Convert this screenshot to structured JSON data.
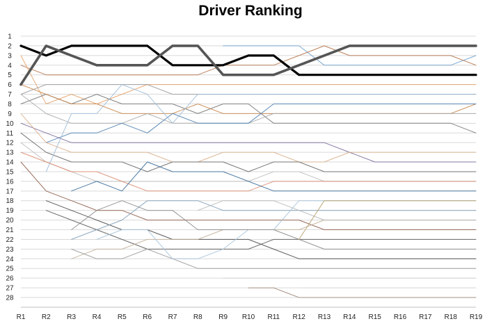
{
  "chart_data": {
    "type": "line",
    "title": "Driver Ranking",
    "xlabel": "",
    "ylabel": "",
    "categories": [
      "R1",
      "R2",
      "R3",
      "R4",
      "R5",
      "R6",
      "R7",
      "R8",
      "R9",
      "R10",
      "R11",
      "R12",
      "R13",
      "R14",
      "R15",
      "R16",
      "R17",
      "R18",
      "R19"
    ],
    "y_ticks": [
      "1",
      "2",
      "3",
      "4",
      "5",
      "6",
      "7",
      "8",
      "9",
      "10",
      "11",
      "12",
      "13",
      "14",
      "15",
      "16",
      "17",
      "18",
      "19",
      "20",
      "21",
      "22",
      "23",
      "24",
      "25",
      "26",
      "27",
      "28"
    ],
    "ylim": [
      1,
      28
    ],
    "y_inverted": true,
    "grid": "horizontal",
    "legend": "none",
    "series": [
      {
        "color": "#000000",
        "emphasis": "thick",
        "values": [
          2,
          3,
          2,
          2,
          2,
          2,
          4,
          4,
          4,
          3,
          3,
          5,
          5,
          5,
          5,
          5,
          5,
          5,
          5
        ]
      },
      {
        "color": "#555555",
        "emphasis": "thick",
        "values": [
          6,
          2,
          3,
          4,
          4,
          4,
          2,
          2,
          5,
          5,
          5,
          4,
          3,
          2,
          2,
          2,
          2,
          2,
          2
        ]
      },
      {
        "color": "#6fa0cc",
        "values": [
          null,
          null,
          null,
          null,
          null,
          null,
          null,
          null,
          2,
          2,
          2,
          2,
          4,
          4,
          4,
          4,
          4,
          4,
          3
        ]
      },
      {
        "color": "#b5734a",
        "values": [
          4,
          5,
          5,
          5,
          5,
          5,
          5,
          5,
          4,
          4,
          4,
          3,
          2,
          3,
          3,
          3,
          3,
          3,
          4
        ]
      },
      {
        "color": "#e6a36a",
        "values": [
          3,
          8,
          7,
          8,
          7,
          6,
          6,
          6,
          6,
          6,
          6,
          6,
          6,
          6,
          6,
          6,
          6,
          6,
          6
        ]
      },
      {
        "color": "#9a9a9a",
        "values": [
          7,
          6,
          6,
          6,
          6,
          6,
          7,
          7,
          7,
          7,
          7,
          7,
          7,
          7,
          7,
          7,
          7,
          7,
          7
        ]
      },
      {
        "color": "#777777",
        "values": [
          8,
          7,
          8,
          7,
          8,
          8,
          8,
          9,
          8,
          8,
          10,
          10,
          10,
          10,
          10,
          10,
          10,
          10,
          11
        ]
      },
      {
        "color": "#c98a50",
        "values": [
          6,
          7,
          8,
          8,
          9,
          9,
          9,
          8,
          9,
          9,
          9,
          9,
          9,
          9,
          9,
          9,
          9,
          9,
          8
        ]
      },
      {
        "color": "#a8a8a8",
        "values": [
          7,
          9,
          10,
          10,
          10,
          9,
          10,
          10,
          10,
          10,
          9,
          9,
          9,
          9,
          9,
          9,
          9,
          9,
          9
        ]
      },
      {
        "color": "#4d7fb0",
        "values": [
          null,
          12,
          11,
          11,
          10,
          11,
          9,
          10,
          10,
          10,
          8,
          8,
          8,
          8,
          8,
          8,
          8,
          8,
          8
        ]
      },
      {
        "color": "#7a6a9a",
        "values": [
          10,
          11,
          12,
          12,
          12,
          12,
          12,
          12,
          12,
          12,
          12,
          12,
          12,
          13,
          14,
          14,
          14,
          14,
          14
        ]
      },
      {
        "color": "#d9b08c",
        "values": [
          9,
          12,
          13,
          13,
          13,
          13,
          14,
          14,
          13,
          13,
          13,
          14,
          14,
          13,
          13,
          13,
          13,
          13,
          13
        ]
      },
      {
        "color": "#6a6a6a",
        "values": [
          11,
          13,
          14,
          14,
          14,
          15,
          14,
          14,
          14,
          15,
          14,
          14,
          15,
          15,
          15,
          15,
          15,
          15,
          15
        ]
      },
      {
        "color": "#9fbcd8",
        "values": [
          null,
          15,
          9,
          9,
          6,
          7,
          10,
          7,
          7,
          7,
          7,
          7,
          7,
          7,
          7,
          7,
          7,
          7,
          7
        ]
      },
      {
        "color": "#bfbfbf",
        "values": [
          12,
          14,
          15,
          16,
          16,
          16,
          16,
          16,
          16,
          16,
          15,
          15,
          16,
          16,
          16,
          16,
          16,
          16,
          16
        ]
      },
      {
        "color": "#d88c70",
        "values": [
          13,
          14,
          15,
          15,
          16,
          17,
          17,
          17,
          17,
          17,
          16,
          16,
          16,
          16,
          16,
          16,
          16,
          16,
          16
        ]
      },
      {
        "color": "#3a6d9a",
        "values": [
          null,
          null,
          17,
          16,
          17,
          14,
          15,
          15,
          15,
          16,
          17,
          17,
          17,
          17,
          17,
          17,
          17,
          17,
          17
        ]
      },
      {
        "color": "#8e5d4a",
        "values": [
          14,
          17,
          18,
          19,
          19,
          20,
          20,
          20,
          20,
          20,
          20,
          20,
          21,
          21,
          21,
          21,
          21,
          21,
          21
        ]
      },
      {
        "color": "#4a4a4a",
        "values": [
          null,
          18,
          19,
          20,
          21,
          21,
          22,
          22,
          22,
          22,
          23,
          24,
          24,
          24,
          24,
          24,
          24,
          24,
          24
        ]
      },
      {
        "color": "#5a5a5a",
        "values": [
          null,
          19,
          20,
          21,
          22,
          23,
          23,
          23,
          23,
          23,
          22,
          22,
          22,
          22,
          22,
          22,
          22,
          22,
          22
        ]
      },
      {
        "color": "#7f9fb8",
        "values": [
          null,
          null,
          22,
          21,
          20,
          18,
          18,
          18,
          19,
          19,
          19,
          19,
          19,
          19,
          19,
          19,
          19,
          19,
          19
        ]
      },
      {
        "color": "#c2b09a",
        "values": [
          null,
          null,
          24,
          23,
          23,
          22,
          22,
          22,
          21,
          21,
          21,
          21,
          20,
          20,
          20,
          20,
          20,
          20,
          20
        ]
      },
      {
        "color": "#9a9a9a",
        "values": [
          null,
          null,
          23,
          24,
          24,
          23,
          24,
          25,
          25,
          25,
          25,
          25,
          25,
          25,
          25,
          25,
          25,
          25,
          25
        ]
      },
      {
        "color": "#a7c4dc",
        "values": [
          null,
          null,
          null,
          22,
          21,
          21,
          24,
          24,
          23,
          21,
          21,
          18,
          18,
          18,
          18,
          18,
          18,
          18,
          18
        ]
      },
      {
        "color": "#8a8a8a",
        "values": [
          null,
          null,
          21,
          19,
          18,
          19,
          19,
          21,
          21,
          21,
          21,
          22,
          23,
          23,
          23,
          23,
          23,
          23,
          23
        ]
      },
      {
        "color": "#b7b7b7",
        "values": [
          null,
          null,
          null,
          null,
          null,
          null,
          null,
          19,
          18,
          18,
          18,
          19,
          20,
          20,
          20,
          20,
          20,
          20,
          20
        ]
      },
      {
        "color": "#cfcfcf",
        "values": [
          null,
          null,
          null,
          null,
          null,
          null,
          null,
          null,
          26,
          26,
          26,
          26,
          26,
          26,
          26,
          26,
          26,
          26,
          26
        ]
      },
      {
        "color": "#a08a7a",
        "values": [
          null,
          null,
          null,
          null,
          null,
          null,
          null,
          null,
          null,
          27,
          27,
          28,
          28,
          28,
          28,
          28,
          28,
          28,
          28
        ]
      },
      {
        "color": "#dcdcdc",
        "values": [
          null,
          null,
          null,
          null,
          null,
          null,
          null,
          null,
          null,
          null,
          null,
          27,
          27,
          27,
          27,
          27,
          27,
          27,
          27
        ]
      },
      {
        "color": "#b8a06e",
        "values": [
          null,
          null,
          null,
          null,
          null,
          null,
          null,
          null,
          null,
          null,
          null,
          22,
          18,
          18,
          18,
          18,
          18,
          18,
          18
        ]
      }
    ]
  }
}
